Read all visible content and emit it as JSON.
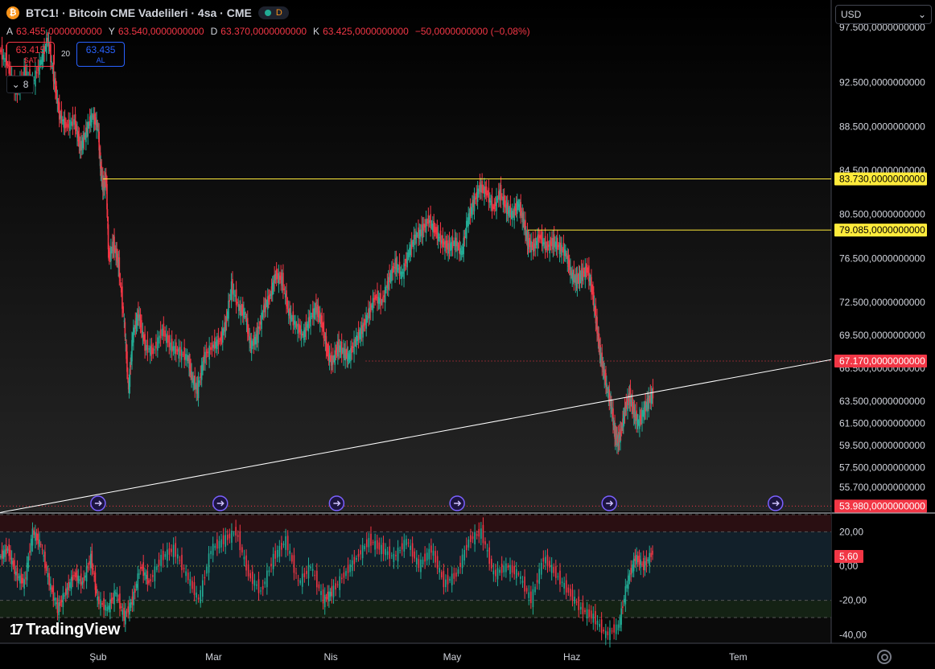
{
  "header": {
    "icon_letter": "₿",
    "title": "BTC1! · Bitcoin CME Vadelileri · 4sa · CME",
    "status_letter": "D"
  },
  "ohlc": {
    "o_label": "A",
    "o": "63.455,0000000000",
    "h_label": "Y",
    "h": "63.540,0000000000",
    "l_label": "D",
    "l": "63.370,0000000000",
    "c_label": "K",
    "c": "63.425,0000000000",
    "change": "−50,0000000000 (−0,08%)"
  },
  "trade": {
    "sell_price": "63.415",
    "sell_label": "SAT",
    "quantity": "20",
    "buy_price": "63.435",
    "buy_label": "AL"
  },
  "indicators_count": "8",
  "currency": "USD",
  "logo_text": "TradingView",
  "colors": {
    "up": "#22ab94",
    "down": "#f23645",
    "yellow": "#ffeb3b",
    "rsi_bg": "#12202a",
    "axis_text": "#d1d4dc"
  },
  "chart_data": {
    "type": "candlestick",
    "price_axis_labels": [
      {
        "value": 97500,
        "text": "97.500,0000000000"
      },
      {
        "value": 92500,
        "text": "92.500,0000000000"
      },
      {
        "value": 88500,
        "text": "88.500,0000000000"
      },
      {
        "value": 84500,
        "text": "84.500,0000000000"
      },
      {
        "value": 80500,
        "text": "80.500,0000000000"
      },
      {
        "value": 76500,
        "text": "76.500,0000000000"
      },
      {
        "value": 72500,
        "text": "72.500,0000000000"
      },
      {
        "value": 69500,
        "text": "69.500,0000000000"
      },
      {
        "value": 66500,
        "text": "66.500,0000000000"
      },
      {
        "value": 63500,
        "text": "63.500,0000000000"
      },
      {
        "value": 61500,
        "text": "61.500,0000000000"
      },
      {
        "value": 59500,
        "text": "59.500,0000000000"
      },
      {
        "value": 57500,
        "text": "57.500,0000000000"
      },
      {
        "value": 55700,
        "text": "55.700,0000000000"
      }
    ],
    "price_tags": [
      {
        "value": 83730,
        "text": "83.730,0000000000",
        "color": "#ffeb3b"
      },
      {
        "value": 79085,
        "text": "79.085,0000000000",
        "color": "#ffeb3b"
      },
      {
        "value": 67170,
        "text": "67.170,0000000000",
        "color": "#f23645"
      },
      {
        "value": 53980,
        "text": "53.980,0000000000",
        "color": "#f23645"
      }
    ],
    "time_labels": [
      {
        "t": 0.118,
        "text": "Şub"
      },
      {
        "t": 0.257,
        "text": "Mar"
      },
      {
        "t": 0.398,
        "text": "Nis"
      },
      {
        "t": 0.544,
        "text": "May"
      },
      {
        "t": 0.688,
        "text": "Haz"
      },
      {
        "t": 0.888,
        "text": "Tem"
      }
    ],
    "price_path": [
      [
        0.0,
        95500
      ],
      [
        0.01,
        94000
      ],
      [
        0.02,
        91500
      ],
      [
        0.03,
        93500
      ],
      [
        0.04,
        92500
      ],
      [
        0.05,
        94500
      ],
      [
        0.058,
        96500
      ],
      [
        0.065,
        93000
      ],
      [
        0.072,
        89500
      ],
      [
        0.08,
        88500
      ],
      [
        0.09,
        89000
      ],
      [
        0.097,
        86500
      ],
      [
        0.104,
        88000
      ],
      [
        0.111,
        89500
      ],
      [
        0.118,
        88500
      ],
      [
        0.121,
        85000
      ],
      [
        0.124,
        83000
      ],
      [
        0.128,
        83800
      ],
      [
        0.131,
        76500
      ],
      [
        0.137,
        77800
      ],
      [
        0.143,
        76000
      ],
      [
        0.15,
        70500
      ],
      [
        0.155,
        64500
      ],
      [
        0.16,
        69500
      ],
      [
        0.167,
        71500
      ],
      [
        0.175,
        68500
      ],
      [
        0.185,
        68000
      ],
      [
        0.196,
        70000
      ],
      [
        0.206,
        68500
      ],
      [
        0.216,
        68000
      ],
      [
        0.226,
        67500
      ],
      [
        0.232,
        65500
      ],
      [
        0.238,
        64500
      ],
      [
        0.246,
        67500
      ],
      [
        0.256,
        68500
      ],
      [
        0.265,
        69000
      ],
      [
        0.272,
        70500
      ],
      [
        0.279,
        74000
      ],
      [
        0.288,
        72000
      ],
      [
        0.295,
        71500
      ],
      [
        0.302,
        68500
      ],
      [
        0.31,
        69500
      ],
      [
        0.318,
        72000
      ],
      [
        0.325,
        73000
      ],
      [
        0.332,
        75000
      ],
      [
        0.34,
        74500
      ],
      [
        0.348,
        71500
      ],
      [
        0.356,
        70500
      ],
      [
        0.365,
        69500
      ],
      [
        0.373,
        71000
      ],
      [
        0.381,
        72000
      ],
      [
        0.388,
        70500
      ],
      [
        0.394,
        68000
      ],
      [
        0.4,
        67000
      ],
      [
        0.407,
        68500
      ],
      [
        0.414,
        68000
      ],
      [
        0.42,
        67500
      ],
      [
        0.428,
        69000
      ],
      [
        0.436,
        70000
      ],
      [
        0.444,
        71500
      ],
      [
        0.452,
        73000
      ],
      [
        0.46,
        72500
      ],
      [
        0.468,
        74500
      ],
      [
        0.476,
        76000
      ],
      [
        0.484,
        75000
      ],
      [
        0.492,
        77000
      ],
      [
        0.5,
        78500
      ],
      [
        0.508,
        79000
      ],
      [
        0.516,
        80000
      ],
      [
        0.524,
        79000
      ],
      [
        0.532,
        78000
      ],
      [
        0.54,
        77500
      ],
      [
        0.548,
        78000
      ],
      [
        0.556,
        77000
      ],
      [
        0.563,
        80000
      ],
      [
        0.57,
        81500
      ],
      [
        0.578,
        83000
      ],
      [
        0.586,
        82500
      ],
      [
        0.594,
        81000
      ],
      [
        0.602,
        82500
      ],
      [
        0.61,
        81000
      ],
      [
        0.617,
        80500
      ],
      [
        0.624,
        81500
      ],
      [
        0.63,
        80000
      ],
      [
        0.635,
        78000
      ],
      [
        0.642,
        77500
      ],
      [
        0.65,
        78500
      ],
      [
        0.658,
        77500
      ],
      [
        0.666,
        78000
      ],
      [
        0.674,
        77500
      ],
      [
        0.681,
        77000
      ],
      [
        0.688,
        75000
      ],
      [
        0.694,
        74500
      ],
      [
        0.7,
        75000
      ],
      [
        0.707,
        75500
      ],
      [
        0.713,
        73500
      ],
      [
        0.718,
        70500
      ],
      [
        0.722,
        68000
      ],
      [
        0.726,
        66500
      ],
      [
        0.731,
        64500
      ],
      [
        0.736,
        63000
      ],
      [
        0.74,
        60500
      ],
      [
        0.744,
        59800
      ],
      [
        0.748,
        61000
      ],
      [
        0.753,
        63000
      ],
      [
        0.758,
        64000
      ],
      [
        0.763,
        62500
      ],
      [
        0.768,
        61500
      ],
      [
        0.774,
        62500
      ],
      [
        0.78,
        63500
      ],
      [
        0.786,
        64200
      ]
    ],
    "price_range": [
      53500,
      100000
    ],
    "trend_line": [
      {
        "t": 0.0,
        "v": 53400
      },
      {
        "t": 1.0,
        "v": 67300
      }
    ],
    "horizontal_lines": [
      {
        "from": 0.124,
        "value": 83730,
        "color": "#ffeb3b"
      },
      {
        "from": 0.635,
        "value": 79085,
        "color": "#ffeb3b"
      }
    ],
    "dotted_lines": [
      {
        "from": 0.44,
        "value": 67170,
        "color": "#f23645"
      },
      {
        "from": 0.0,
        "value": 53980,
        "color": "#f23645"
      }
    ],
    "event_markers": [
      0.118,
      0.265,
      0.405,
      0.55,
      0.733,
      0.933
    ],
    "oscillator": {
      "axis_labels": [
        {
          "value": 20,
          "text": "20,00"
        },
        {
          "value": 0,
          "text": "0,00"
        },
        {
          "value": -20,
          "text": "-20,00"
        },
        {
          "value": -40,
          "text": "-40,00"
        }
      ],
      "current": {
        "value": 5.6,
        "text": "5,60"
      },
      "range": [
        -45,
        30
      ],
      "bands": {
        "upper": 30,
        "upper_mid": 20,
        "lower_mid": -20,
        "lower": -30
      },
      "path": [
        [
          0.0,
          5
        ],
        [
          0.01,
          10
        ],
        [
          0.02,
          -5
        ],
        [
          0.03,
          -10
        ],
        [
          0.04,
          20
        ],
        [
          0.05,
          12
        ],
        [
          0.06,
          -10
        ],
        [
          0.07,
          -25
        ],
        [
          0.08,
          -15
        ],
        [
          0.09,
          -5
        ],
        [
          0.1,
          -10
        ],
        [
          0.11,
          5
        ],
        [
          0.118,
          -20
        ],
        [
          0.13,
          -25
        ],
        [
          0.14,
          -15
        ],
        [
          0.15,
          -30
        ],
        [
          0.16,
          -20
        ],
        [
          0.17,
          0
        ],
        [
          0.18,
          -10
        ],
        [
          0.195,
          5
        ],
        [
          0.21,
          10
        ],
        [
          0.225,
          -5
        ],
        [
          0.24,
          -20
        ],
        [
          0.255,
          10
        ],
        [
          0.27,
          15
        ],
        [
          0.285,
          20
        ],
        [
          0.3,
          -5
        ],
        [
          0.315,
          -15
        ],
        [
          0.33,
          5
        ],
        [
          0.345,
          15
        ],
        [
          0.36,
          -10
        ],
        [
          0.375,
          0
        ],
        [
          0.39,
          -20
        ],
        [
          0.4,
          -15
        ],
        [
          0.415,
          -5
        ],
        [
          0.43,
          5
        ],
        [
          0.445,
          15
        ],
        [
          0.46,
          10
        ],
        [
          0.475,
          5
        ],
        [
          0.49,
          15
        ],
        [
          0.505,
          0
        ],
        [
          0.52,
          10
        ],
        [
          0.535,
          -10
        ],
        [
          0.55,
          -5
        ],
        [
          0.565,
          15
        ],
        [
          0.58,
          20
        ],
        [
          0.595,
          -5
        ],
        [
          0.61,
          0
        ],
        [
          0.625,
          -5
        ],
        [
          0.64,
          -20
        ],
        [
          0.655,
          5
        ],
        [
          0.67,
          -5
        ],
        [
          0.685,
          -15
        ],
        [
          0.7,
          -25
        ],
        [
          0.715,
          -30
        ],
        [
          0.73,
          -40
        ],
        [
          0.745,
          -35
        ],
        [
          0.755,
          -10
        ],
        [
          0.765,
          5
        ],
        [
          0.775,
          0
        ],
        [
          0.786,
          8
        ]
      ]
    }
  }
}
